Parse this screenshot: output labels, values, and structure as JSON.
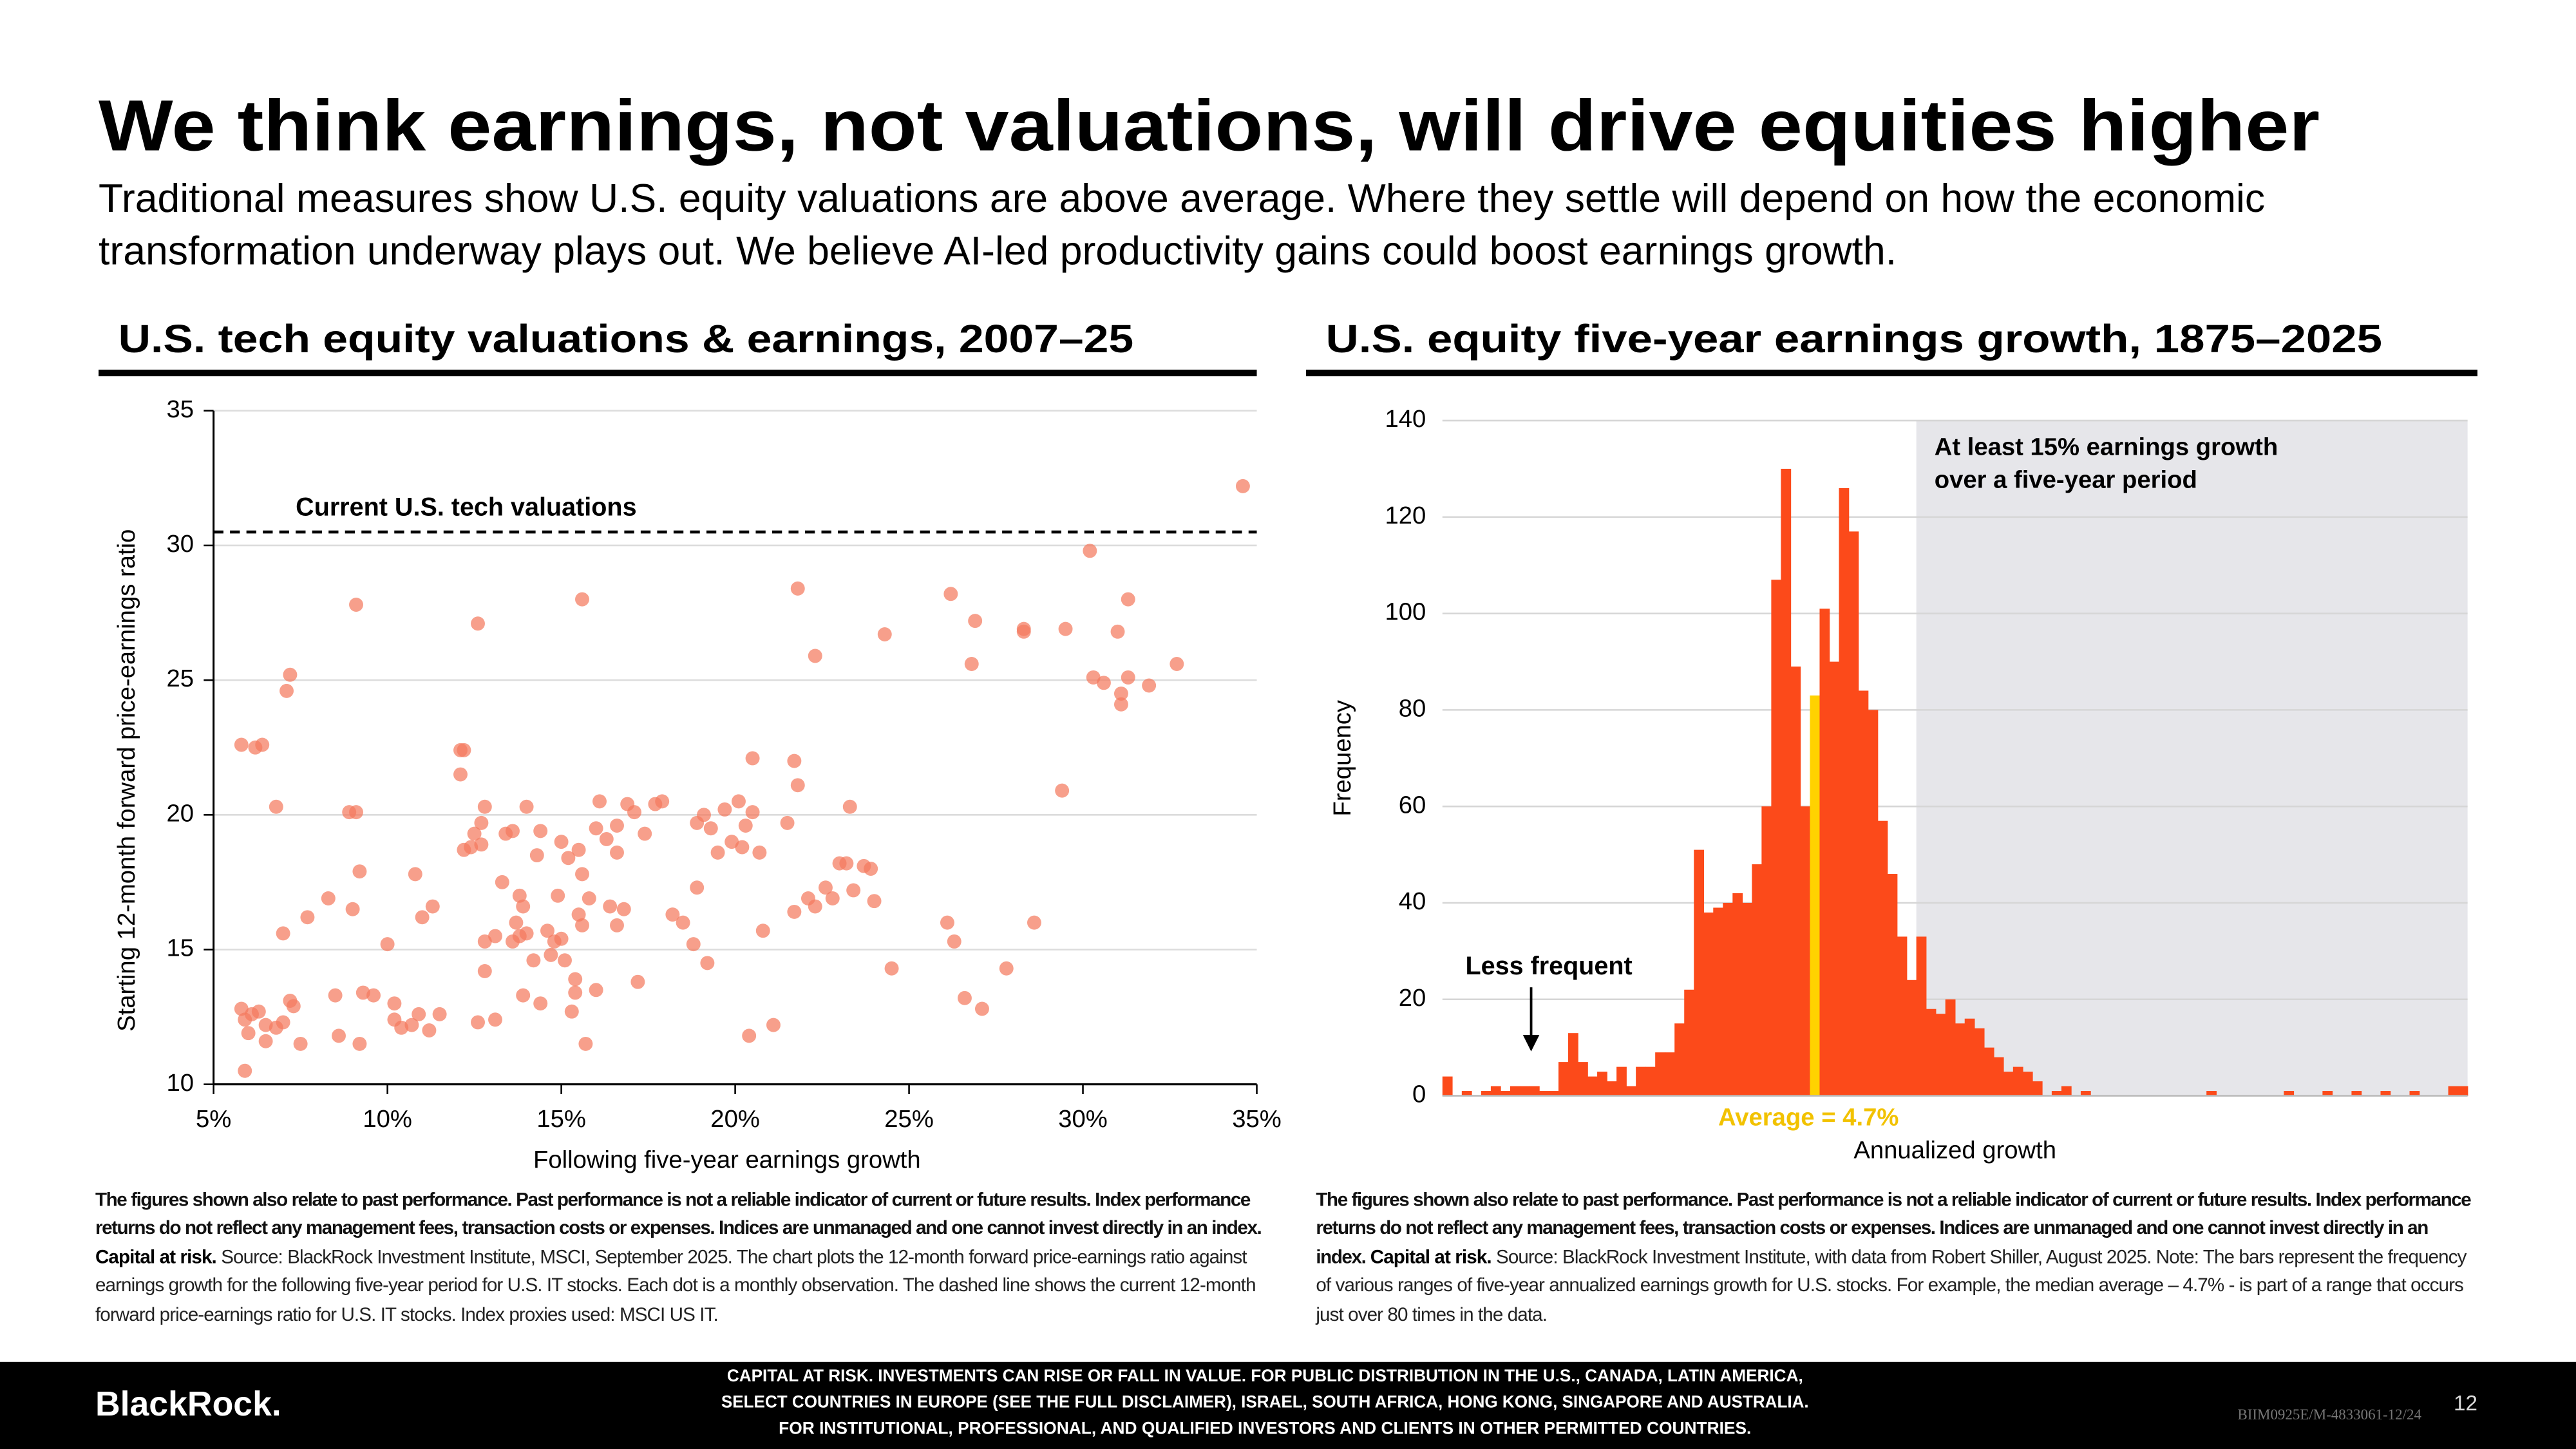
{
  "title": "We think earnings, not valuations, will drive equities higher",
  "subtitle": "Traditional measures show U.S. equity valuations are above average. Where they settle will depend on how the economic transformation underway plays out. We believe AI-led productivity gains could boost earnings growth.",
  "chart_data": [
    {
      "type": "scatter",
      "title": "U.S. tech equity valuations & earnings, 2007–25",
      "x_label": "Following five-year earnings growth",
      "y_label": "Starting 12-month forward price-earnings ratio",
      "x": [
        5.8,
        6.2,
        6.4,
        6.8,
        7.2,
        7.1,
        7.0,
        5.8,
        5.9,
        6.1,
        6.3,
        6.5,
        6.8,
        7.0,
        7.2,
        7.3,
        6.0,
        5.9,
        6.5,
        7.5,
        7.7,
        8.3,
        8.5,
        8.9,
        9.1,
        9.0,
        9.2,
        9.1,
        9.3,
        8.6,
        9.2,
        9.6,
        10.0,
        10.2,
        10.2,
        10.4,
        10.7,
        10.8,
        10.9,
        11.0,
        11.3,
        11.5,
        11.2,
        12.2,
        12.1,
        12.1,
        12.5,
        12.2,
        12.4,
        12.7,
        12.8,
        12.7,
        12.6,
        12.6,
        12.8,
        12.8,
        13.1,
        13.1,
        13.3,
        13.4,
        13.6,
        13.7,
        13.8,
        13.6,
        13.8,
        13.9,
        14.0,
        13.9,
        14.2,
        14.3,
        14.0,
        14.4,
        14.4,
        14.7,
        14.6,
        14.8,
        14.9,
        15.0,
        15.1,
        15.0,
        15.2,
        15.3,
        15.4,
        15.5,
        15.6,
        15.5,
        15.7,
        15.8,
        15.6,
        15.4,
        15.6,
        16.0,
        16.0,
        16.1,
        16.3,
        16.4,
        16.6,
        16.6,
        16.9,
        16.6,
        16.8,
        17.1,
        17.2,
        17.4,
        17.7,
        17.9,
        18.2,
        18.5,
        18.8,
        18.9,
        18.9,
        19.1,
        19.2,
        19.3,
        19.5,
        19.7,
        19.9,
        20.1,
        20.2,
        20.3,
        20.4,
        20.5,
        20.5,
        20.7,
        20.8,
        21.1,
        21.5,
        21.7,
        21.7,
        21.8,
        21.8,
        22.1,
        22.3,
        22.3,
        22.6,
        22.8,
        23.0,
        23.2,
        23.3,
        23.4,
        23.7,
        23.9,
        24.0,
        24.3,
        24.5,
        26.1,
        26.2,
        26.3,
        26.6,
        26.8,
        26.9,
        27.1,
        27.8,
        28.3,
        28.3,
        28.6,
        29.4,
        29.5,
        30.2,
        30.3,
        30.6,
        31.0,
        31.1,
        31.1,
        31.3,
        31.3,
        31.9,
        32.7,
        34.6
      ],
      "y": [
        22.6,
        22.5,
        22.6,
        20.3,
        25.2,
        24.6,
        15.6,
        12.8,
        12.4,
        12.6,
        12.7,
        12.2,
        12.1,
        12.3,
        13.1,
        12.9,
        11.9,
        10.5,
        11.6,
        11.5,
        16.2,
        16.9,
        13.3,
        20.1,
        20.1,
        16.5,
        17.9,
        27.8,
        13.4,
        11.8,
        11.5,
        13.3,
        15.2,
        13.0,
        12.4,
        12.1,
        12.2,
        17.8,
        12.6,
        16.2,
        16.6,
        12.6,
        12.0,
        22.4,
        22.4,
        21.5,
        19.3,
        18.7,
        18.8,
        18.9,
        20.3,
        19.7,
        27.1,
        12.3,
        14.2,
        15.3,
        15.5,
        12.4,
        17.5,
        19.3,
        19.4,
        16.0,
        17.0,
        15.3,
        15.5,
        16.6,
        15.6,
        13.3,
        14.6,
        18.5,
        20.3,
        19.4,
        13.0,
        14.8,
        15.7,
        15.3,
        17.0,
        15.4,
        14.6,
        19.0,
        18.4,
        12.7,
        13.4,
        18.7,
        17.8,
        16.3,
        11.5,
        16.9,
        28.0,
        13.9,
        15.9,
        13.5,
        19.5,
        20.5,
        19.1,
        16.6,
        18.6,
        19.6,
        20.4,
        15.9,
        16.5,
        20.1,
        13.8,
        19.3,
        20.4,
        20.5,
        16.3,
        16.0,
        15.2,
        19.7,
        17.3,
        20.0,
        14.5,
        19.5,
        18.6,
        20.2,
        19.0,
        20.5,
        18.8,
        19.6,
        11.8,
        22.1,
        20.1,
        18.6,
        15.7,
        12.2,
        19.7,
        22.0,
        16.4,
        21.1,
        28.4,
        16.9,
        25.9,
        16.6,
        17.3,
        16.9,
        18.2,
        18.2,
        20.3,
        17.2,
        18.1,
        18.0,
        16.8,
        26.7,
        14.3,
        16.0,
        28.2,
        15.3,
        13.2,
        25.6,
        27.2,
        12.8,
        14.3,
        26.9,
        26.8,
        16.0,
        20.9,
        26.9,
        29.8,
        25.1,
        24.9,
        26.8,
        24.5,
        24.1,
        28.0,
        25.1,
        24.8,
        25.6,
        32.2
      ],
      "color": "#f47a5e",
      "xlim": [
        5,
        35
      ],
      "xticks": [
        {
          "value": 5,
          "label": "5%"
        },
        {
          "value": 10,
          "label": "10%"
        },
        {
          "value": 15,
          "label": "15%"
        },
        {
          "value": 20,
          "label": "20%"
        },
        {
          "value": 25,
          "label": "25%"
        },
        {
          "value": 30,
          "label": "30%"
        },
        {
          "value": 35,
          "label": "35%"
        }
      ],
      "ylim": [
        10,
        35
      ],
      "yticks": [
        10,
        15,
        20,
        25,
        30,
        35
      ],
      "grid": true,
      "reference_line": {
        "value": 30.5,
        "label": "Current U.S. tech valuations"
      }
    },
    {
      "type": "histogram",
      "title": "U.S. equity five-year earnings growth, 1875–2025",
      "x_label": "Annualized growth",
      "y_label": "Frequency",
      "bins": [
        -34,
        -33,
        -32,
        -31,
        -30,
        -29,
        -28,
        -27,
        -26,
        -25,
        -24,
        -23,
        -22,
        -21,
        -20,
        -19,
        -18,
        -17,
        -16,
        -15,
        -14,
        -13,
        -12,
        -11,
        -10,
        -9,
        -8,
        -7,
        -6,
        -5,
        -4,
        -3,
        -2,
        -1,
        0,
        1,
        2,
        3,
        4,
        5,
        6,
        7,
        8,
        9,
        10,
        11,
        12,
        13,
        14,
        15,
        16,
        17,
        18,
        19,
        20,
        21,
        22,
        23,
        24,
        25,
        26,
        27,
        28,
        29,
        30,
        31,
        32,
        33,
        34,
        35,
        36,
        37,
        38,
        39,
        40,
        41,
        42,
        43,
        44,
        45,
        46,
        47,
        48,
        49,
        50,
        51,
        52,
        53,
        54,
        55,
        56,
        57,
        58,
        59,
        60,
        61,
        62,
        63,
        64,
        65,
        66,
        67,
        68,
        69,
        70,
        71,
        72
      ],
      "values": [
        4,
        0,
        1,
        0,
        1,
        2,
        1,
        2,
        2,
        2,
        1,
        1,
        7,
        13,
        7,
        4,
        5,
        3,
        6,
        2,
        6,
        6,
        9,
        9,
        15,
        22,
        51,
        38,
        39,
        40,
        42,
        40,
        48,
        60,
        107,
        130,
        89,
        60,
        83,
        101,
        90,
        126,
        117,
        84,
        80,
        57,
        46,
        33,
        24,
        33,
        18,
        17,
        20,
        15,
        16,
        14,
        10,
        8,
        5,
        6,
        5,
        3,
        0,
        1,
        2,
        0,
        1,
        0,
        0,
        0,
        0,
        0,
        0,
        0,
        0,
        0,
        0,
        0,
        0,
        1,
        0,
        0,
        0,
        0,
        0,
        0,
        0,
        1,
        0,
        0,
        0,
        1,
        0,
        0,
        1,
        0,
        0,
        1,
        0,
        0,
        1,
        0,
        0,
        0,
        2,
        2
      ],
      "color": "#fc4a1a",
      "xlim": [
        -34,
        72
      ],
      "ylim": [
        0,
        140
      ],
      "yticks": [
        0,
        20,
        40,
        60,
        80,
        100,
        120,
        140
      ],
      "grid": true,
      "shaded_region": {
        "from": 15,
        "color": "#e6e6ea",
        "label_lines": [
          "At least 15% earnings growth",
          "over a five-year period"
        ]
      },
      "average": {
        "value": 4.7,
        "label": "Average = 4.7%",
        "color": "#ffd200"
      },
      "annotation": "Less frequent"
    }
  ],
  "notes": [
    {
      "disclaimer": "The figures shown also relate to past performance. Past performance is not a reliable indicator of current or future results. Index performance returns do not reflect any management fees, transaction costs or expenses. Indices are unmanaged and one cannot invest directly in an index.",
      "capital": "Capital at risk.",
      "source": "Source: BlackRock Investment Institute, MSCI, September 2025. The chart plots the 12-month forward price-earnings ratio against earnings growth for the following five-year period for U.S. IT stocks. Each dot is a monthly observation. The dashed line shows the current 12-month forward price-earnings ratio for U.S. IT stocks. Index proxies used: MSCI US IT."
    },
    {
      "disclaimer": "The figures shown also relate to past performance. Past performance is not a reliable indicator of current or future results. Index performance returns do not reflect any management fees, transaction costs or expenses. Indices are unmanaged and one cannot invest directly in an index.",
      "capital": "Capital at risk.",
      "source": "Source: BlackRock Investment Institute, with data from Robert Shiller, August 2025. Note: The bars represent the frequency of various ranges of five-year annualized earnings growth for U.S. stocks. For example, the median average – 4.7% - is part of a range that occurs just over 80 times in the data."
    }
  ],
  "footer": {
    "logo": "BlackRock.",
    "disclaimer_lines": [
      "CAPITAL AT RISK. INVESTMENTS CAN RISE OR FALL IN VALUE. FOR PUBLIC DISTRIBUTION IN THE U.S., CANADA, LATIN AMERICA,",
      "SELECT COUNTRIES IN EUROPE (SEE THE FULL DISCLAIMER), ISRAEL, SOUTH AFRICA, HONG KONG, SINGAPORE AND AUSTRALIA.",
      "FOR INSTITUTIONAL, PROFESSIONAL, AND QUALIFIED INVESTORS AND CLIENTS IN OTHER PERMITTED COUNTRIES."
    ],
    "code": "BIIM0925E/M-4833061-12/24",
    "page": "12"
  }
}
